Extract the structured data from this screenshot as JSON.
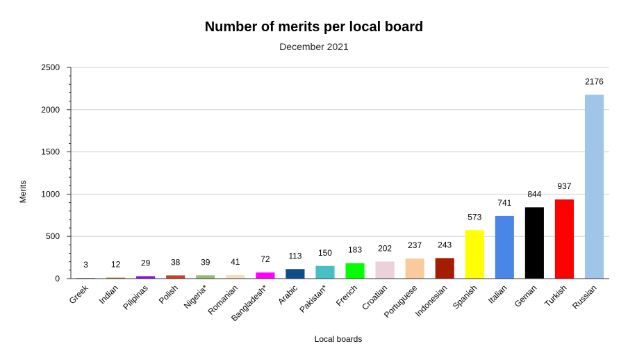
{
  "chart_data": {
    "type": "bar",
    "title": "Number of merits per local board",
    "subtitle": "December 2021",
    "xlabel": "Local boards",
    "ylabel": "Merits",
    "ylim": [
      0,
      2500
    ],
    "yticks": [
      0,
      500,
      1000,
      1500,
      2000,
      2500
    ],
    "grid": true,
    "legend": "none",
    "categories": [
      "Greek",
      "Indian",
      "Pilipinas",
      "Polish",
      "Nigeria*",
      "Romanian",
      "Bangladesh*",
      "Arabic",
      "Pakistan*",
      "French",
      "Croatian",
      "Portuguese",
      "Indonesian",
      "Spanish",
      "Italian",
      "Geman",
      "Turkish",
      "Russian"
    ],
    "values": [
      3,
      12,
      29,
      38,
      39,
      41,
      72,
      113,
      150,
      183,
      202,
      237,
      243,
      573,
      741,
      844,
      937,
      2176
    ],
    "colors": [
      "#6d4c2f",
      "#b9822b",
      "#8a14d6",
      "#c8412f",
      "#8fbf77",
      "#f8dcc2",
      "#ff00ff",
      "#0f4c8a",
      "#46c0c5",
      "#00ff00",
      "#ead1dc",
      "#f9cb9c",
      "#a61c00",
      "#ffff00",
      "#4a86e8",
      "#000000",
      "#ff0000",
      "#9fc5e8"
    ]
  }
}
